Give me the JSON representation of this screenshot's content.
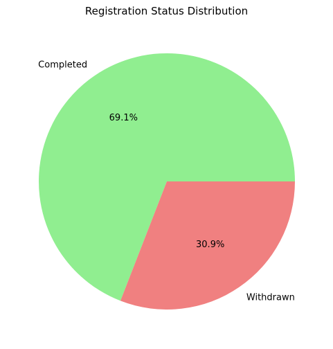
{
  "chart_data": {
    "type": "pie",
    "title": "Registration Status Distribution",
    "categories": [
      "Completed",
      "Withdrawn"
    ],
    "values": [
      69.1,
      30.9
    ],
    "value_labels": [
      "69.1%",
      "30.9%"
    ],
    "colors": [
      "#90ee90",
      "#f08080"
    ],
    "start_angle_deg": 0,
    "direction": "counterclockwise"
  }
}
